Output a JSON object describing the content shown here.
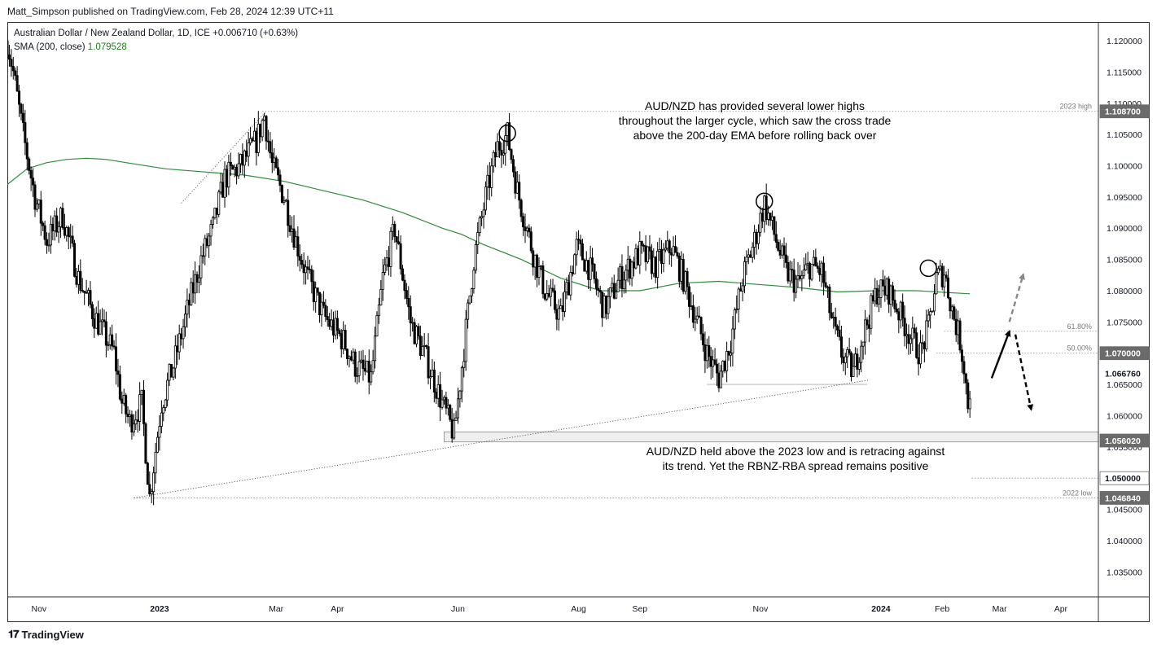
{
  "header": {
    "publisher": "Matt_Simpson published on TradingView.com, Feb 28, 2024 12:39 UTC+11",
    "symbol": "Australian Dollar / New Zealand Dollar, 1D, ICE",
    "change": "+0.006710 (+0.63%)",
    "indicator": "SMA (200, close)",
    "indicator_value": "1.079528"
  },
  "footer": {
    "logo_text": "TradingView",
    "logo_mark": "𝟏𝟕"
  },
  "colors": {
    "candle": "#000000",
    "sma": "#2e8b3a",
    "grid_line": "#9e9e9e",
    "label_bg": "#6b6b6b",
    "axis": "#2a2e39"
  },
  "chart_data": {
    "type": "candlestick",
    "symbol": "AUD/NZD",
    "timeframe": "1D",
    "ylim": [
      1.031,
      1.123
    ],
    "y_ticks": [
      "1.120000",
      "1.115000",
      "1.110000",
      "1.105000",
      "1.100000",
      "1.095000",
      "1.090000",
      "1.085000",
      "1.080000",
      "1.075000",
      "1.070000",
      "1.065000",
      "1.060000",
      "1.055000",
      "1.050000",
      "1.045000",
      "1.040000",
      "1.035000"
    ],
    "y_tick_values": [
      1.12,
      1.115,
      1.11,
      1.105,
      1.1,
      1.095,
      1.09,
      1.085,
      1.08,
      1.075,
      1.07,
      1.065,
      1.06,
      1.055,
      1.05,
      1.045,
      1.04,
      1.035
    ],
    "x_labels": [
      {
        "label": "Nov",
        "day": 16,
        "bold": false
      },
      {
        "label": "2023",
        "day": 77,
        "bold": true
      },
      {
        "label": "Mar",
        "day": 136,
        "bold": false
      },
      {
        "label": "Apr",
        "day": 167,
        "bold": false
      },
      {
        "label": "Jun",
        "day": 228,
        "bold": false
      },
      {
        "label": "Aug",
        "day": 289,
        "bold": false
      },
      {
        "label": "Sep",
        "day": 320,
        "bold": false
      },
      {
        "label": "Nov",
        "day": 381,
        "bold": false
      },
      {
        "label": "2024",
        "day": 442,
        "bold": true
      },
      {
        "label": "Feb",
        "day": 473,
        "bold": false
      },
      {
        "label": "Mar",
        "day": 502,
        "bold": false
      },
      {
        "label": "Apr",
        "day": 533,
        "bold": false
      }
    ],
    "x_range_days": [
      0,
      552
    ],
    "last_day": 487,
    "price_anchors": [
      [
        0,
        1.12
      ],
      [
        3,
        1.115
      ],
      [
        8,
        1.105
      ],
      [
        14,
        1.095
      ],
      [
        20,
        1.088
      ],
      [
        28,
        1.092
      ],
      [
        36,
        1.082
      ],
      [
        44,
        1.076
      ],
      [
        54,
        1.07
      ],
      [
        58,
        1.062
      ],
      [
        62,
        1.059
      ],
      [
        68,
        1.062
      ],
      [
        72,
        1.047
      ],
      [
        78,
        1.062
      ],
      [
        84,
        1.068
      ],
      [
        92,
        1.078
      ],
      [
        98,
        1.085
      ],
      [
        104,
        1.09
      ],
      [
        110,
        1.098
      ],
      [
        118,
        1.1
      ],
      [
        126,
        1.104
      ],
      [
        130,
        1.108
      ],
      [
        134,
        1.1
      ],
      [
        140,
        1.095
      ],
      [
        146,
        1.088
      ],
      [
        152,
        1.082
      ],
      [
        160,
        1.076
      ],
      [
        170,
        1.072
      ],
      [
        176,
        1.068
      ],
      [
        184,
        1.066
      ],
      [
        190,
        1.082
      ],
      [
        196,
        1.09
      ],
      [
        204,
        1.075
      ],
      [
        212,
        1.069
      ],
      [
        220,
        1.062
      ],
      [
        226,
        1.057
      ],
      [
        230,
        1.068
      ],
      [
        236,
        1.085
      ],
      [
        242,
        1.095
      ],
      [
        248,
        1.103
      ],
      [
        253,
        1.105
      ],
      [
        258,
        1.096
      ],
      [
        266,
        1.086
      ],
      [
        272,
        1.08
      ],
      [
        280,
        1.076
      ],
      [
        288,
        1.087
      ],
      [
        294,
        1.084
      ],
      [
        302,
        1.077
      ],
      [
        310,
        1.082
      ],
      [
        320,
        1.086
      ],
      [
        328,
        1.084
      ],
      [
        336,
        1.087
      ],
      [
        342,
        1.082
      ],
      [
        348,
        1.076
      ],
      [
        354,
        1.07
      ],
      [
        360,
        1.066
      ],
      [
        366,
        1.072
      ],
      [
        372,
        1.082
      ],
      [
        378,
        1.088
      ],
      [
        383,
        1.094
      ],
      [
        388,
        1.089
      ],
      [
        394,
        1.083
      ],
      [
        400,
        1.081
      ],
      [
        406,
        1.084
      ],
      [
        412,
        1.083
      ],
      [
        418,
        1.074
      ],
      [
        422,
        1.07
      ],
      [
        428,
        1.067
      ],
      [
        432,
        1.072
      ],
      [
        440,
        1.08
      ],
      [
        446,
        1.08
      ],
      [
        452,
        1.076
      ],
      [
        458,
        1.072
      ],
      [
        462,
        1.07
      ],
      [
        466,
        1.074
      ],
      [
        470,
        1.082
      ],
      [
        474,
        1.083
      ],
      [
        478,
        1.077
      ],
      [
        482,
        1.072
      ],
      [
        484,
        1.068
      ],
      [
        486,
        1.062
      ],
      [
        487,
        1.064
      ]
    ],
    "sma_200": [
      [
        0,
        1.097
      ],
      [
        10,
        1.0995
      ],
      [
        20,
        1.1005
      ],
      [
        30,
        1.101
      ],
      [
        40,
        1.1012
      ],
      [
        50,
        1.101
      ],
      [
        60,
        1.1005
      ],
      [
        80,
        1.0995
      ],
      [
        100,
        1.099
      ],
      [
        120,
        1.0985
      ],
      [
        140,
        1.0975
      ],
      [
        160,
        1.096
      ],
      [
        180,
        1.0945
      ],
      [
        200,
        1.0925
      ],
      [
        220,
        1.09
      ],
      [
        230,
        1.089
      ],
      [
        240,
        1.0875
      ],
      [
        260,
        1.085
      ],
      [
        280,
        1.082
      ],
      [
        300,
        1.08
      ],
      [
        320,
        1.08
      ],
      [
        340,
        1.0812
      ],
      [
        360,
        1.0815
      ],
      [
        372,
        1.0812
      ],
      [
        388,
        1.0808
      ],
      [
        400,
        1.0805
      ],
      [
        420,
        1.0798
      ],
      [
        440,
        1.08
      ],
      [
        460,
        1.08
      ],
      [
        476,
        1.0797
      ],
      [
        487,
        1.0795
      ]
    ],
    "horizontal_levels": [
      {
        "name": "2023 high",
        "value": 1.1087,
        "label": "1.108700",
        "from_day": 129,
        "line_label": "2023 high"
      },
      {
        "name": "61.8%",
        "value": 1.0735,
        "label": "",
        "from_day": 474,
        "line_label": "61.80%"
      },
      {
        "name": "50.00%",
        "value": 1.07,
        "label": "1.070000",
        "from_day": 470,
        "line_label": "50.00%"
      },
      {
        "name": "last",
        "value": 1.06676,
        "label": "1.066760",
        "from_day": null,
        "line_label": ""
      },
      {
        "name": "2023 low",
        "value": 1.05602,
        "label": "1.056020",
        "from_day": 221,
        "line_label": "2023 low"
      },
      {
        "name": "1.05",
        "value": 1.05,
        "label": "1.050000",
        "from_day": 488,
        "line_label": ""
      },
      {
        "name": "2022 low",
        "value": 1.04684,
        "label": "1.046840",
        "from_day": 64,
        "line_label": "2022 low"
      }
    ],
    "support_zone": {
      "from_day": 221,
      "top": 1.0574,
      "bottom": 1.0558
    },
    "mid_zone_line": {
      "from_day": 354,
      "to_day": 435,
      "value": 1.065
    },
    "trendlines": [
      {
        "from_day": 64,
        "from_price": 1.04684,
        "to_day": 436,
        "to_price": 1.0657
      },
      {
        "from_day": 88,
        "from_price": 1.094,
        "to_day": 131,
        "to_price": 1.1087
      }
    ],
    "swing_high_circles": [
      {
        "day": 253,
        "price": 1.1052
      },
      {
        "day": 383,
        "price": 1.0943
      },
      {
        "day": 466,
        "price": 1.0836
      }
    ],
    "arrows": [
      {
        "style": "solid",
        "color": "#000000",
        "from_day": 498,
        "from_price": 1.066,
        "to_day": 507,
        "to_price": 1.0735
      },
      {
        "style": "dashed",
        "color": "#888888",
        "from_day": 507,
        "from_price": 1.075,
        "to_day": 514,
        "to_price": 1.0826
      },
      {
        "style": "dashed",
        "color": "#000000",
        "from_day": 510,
        "from_price": 1.073,
        "to_day": 518,
        "to_price": 1.061
      }
    ],
    "annotations": [
      {
        "lines": [
          "AUD/NZD has provided several lower highs",
          "throughout the larger cycle, which saw the cross trade",
          "above the 200-day EMA before rolling back over"
        ]
      },
      {
        "lines": [
          "AUD/NZD held above the 2023 low and is retracing against",
          "its trend. Yet the RBNZ-RBA spread remains positive"
        ]
      }
    ]
  }
}
